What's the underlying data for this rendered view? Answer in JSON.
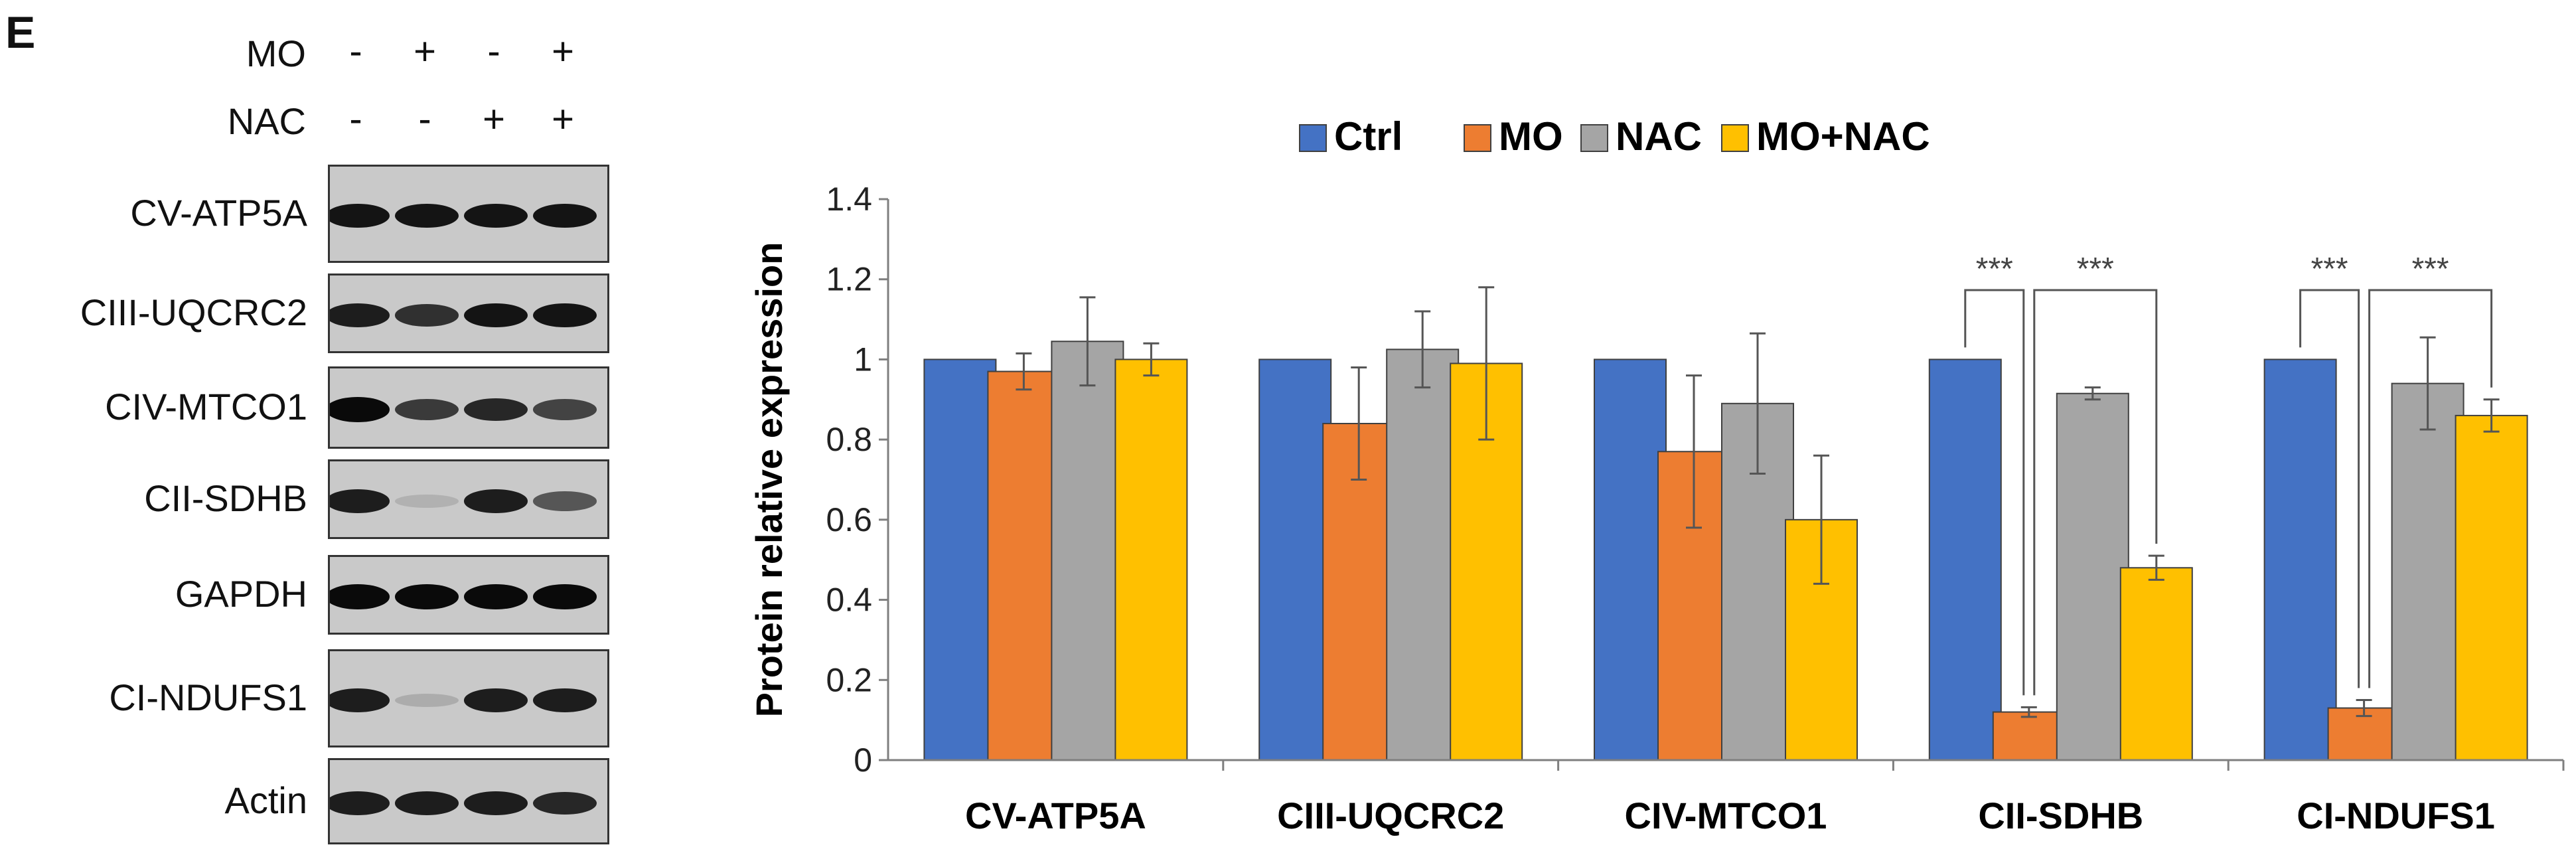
{
  "panel_label": "E",
  "treatments": [
    {
      "name": "MO",
      "signs": [
        "-",
        "+",
        "-",
        "+"
      ]
    },
    {
      "name": "NAC",
      "signs": [
        "-",
        "-",
        "+",
        "+"
      ]
    }
  ],
  "blots": [
    {
      "label": "CV-ATP5A",
      "intensity": [
        0.95,
        0.95,
        0.95,
        0.95
      ]
    },
    {
      "label": "CIII-UQCRC2",
      "intensity": [
        0.9,
        0.8,
        0.95,
        0.95
      ]
    },
    {
      "label": "CIV-MTCO1",
      "intensity": [
        1.0,
        0.75,
        0.85,
        0.7
      ]
    },
    {
      "label": "CII-SDHB",
      "intensity": [
        0.9,
        0.12,
        0.9,
        0.6
      ]
    },
    {
      "label": "GAPDH",
      "intensity": [
        1.0,
        1.0,
        1.0,
        1.0
      ]
    },
    {
      "label": "CI-NDUFS1",
      "intensity": [
        0.9,
        0.15,
        0.9,
        0.9
      ]
    },
    {
      "label": "Actin",
      "intensity": [
        0.9,
        0.9,
        0.9,
        0.85
      ]
    }
  ],
  "chart_data": {
    "type": "bar",
    "title": "",
    "xlabel": "",
    "ylabel": "Protein relative expression",
    "ylim": [
      0,
      1.4
    ],
    "yticks": [
      0,
      0.2,
      0.4,
      0.6,
      0.8,
      1,
      1.2,
      1.4
    ],
    "ytick_labels": [
      "0",
      "0.2",
      "0.4",
      "0.6",
      "0.8",
      "1",
      "1.2",
      "1.4"
    ],
    "grid": false,
    "legend_position": "top",
    "categories": [
      "CV-ATP5A",
      "CIII-UQCRC2",
      "CIV-MTCO1",
      "CII-SDHB",
      "CI-NDUFS1"
    ],
    "series": [
      {
        "name": "Ctrl",
        "color": "#4472C4",
        "values": [
          1,
          1,
          1,
          1,
          1
        ],
        "errors": [
          0,
          0,
          0,
          0,
          0
        ]
      },
      {
        "name": "MO",
        "color": "#ED7D31",
        "values": [
          0.97,
          0.84,
          0.77,
          0.12,
          0.13
        ],
        "errors": [
          0.045,
          0.14,
          0.19,
          0.012,
          0.02
        ]
      },
      {
        "name": "NAC",
        "color": "#A5A5A5",
        "values": [
          1.045,
          1.025,
          0.89,
          0.915,
          0.94
        ],
        "errors": [
          0.11,
          0.095,
          0.175,
          0.015,
          0.115
        ]
      },
      {
        "name": "MO+NAC",
        "color": "#FFC000",
        "values": [
          1.0,
          0.99,
          0.6,
          0.48,
          0.86
        ],
        "errors": [
          0.04,
          0.19,
          0.16,
          0.03,
          0.04
        ]
      }
    ],
    "significance": [
      {
        "category": "CII-SDHB",
        "from_series": "Ctrl",
        "to_series": "MO",
        "label": "***"
      },
      {
        "category": "CII-SDHB",
        "from_series": "MO",
        "to_series": "MO+NAC",
        "label": "***"
      },
      {
        "category": "CI-NDUFS1",
        "from_series": "Ctrl",
        "to_series": "MO",
        "label": "***"
      },
      {
        "category": "CI-NDUFS1",
        "from_series": "MO",
        "to_series": "MO+NAC",
        "label": "***"
      }
    ]
  }
}
